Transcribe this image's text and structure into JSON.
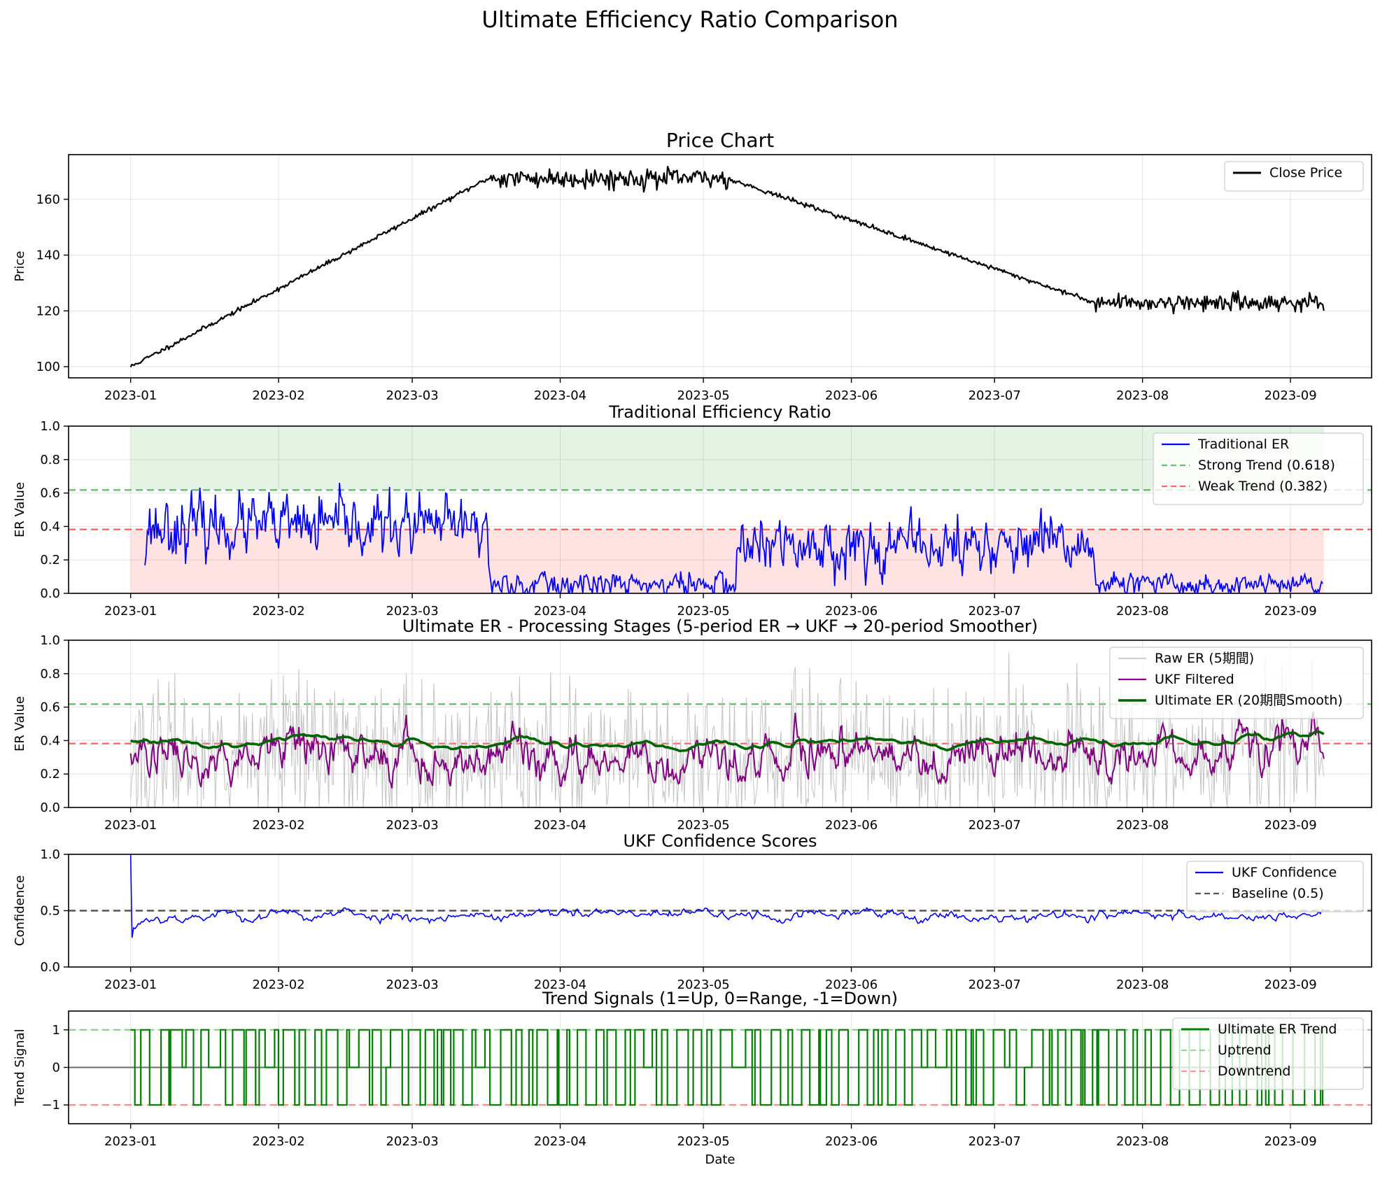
{
  "figure": {
    "suptitle": "Ultimate Efficiency Ratio Comparison"
  },
  "colors": {
    "price": "#000000",
    "traditional": "#0000ff",
    "strong": "#2ca02c",
    "weak": "#ff0000",
    "raw": "#bdbdbd",
    "ukf": "#800080",
    "ultimate": "#006400",
    "confidence": "#0000ff",
    "baseline": "#555555",
    "trend": "#008000"
  },
  "x_ticks": [
    "2023-01",
    "2023-02",
    "2023-03",
    "2023-04",
    "2023-05",
    "2023-06",
    "2023-07",
    "2023-08",
    "2023-09"
  ],
  "chart_data": [
    {
      "id": "price",
      "type": "line",
      "title": "Price Chart",
      "xlabel": "",
      "ylabel": "Price",
      "x_range": [
        "2022-12-19",
        "2023-09-18"
      ],
      "ylim": [
        96,
        176
      ],
      "y_ticks": [
        100,
        120,
        140,
        160
      ],
      "grid": true,
      "legend_position": "top-right",
      "legend": [
        "Close Price"
      ],
      "series": [
        {
          "name": "Close Price",
          "x": [
            "2023-01-01",
            "2023-03-17",
            "2023-05-06",
            "2023-07-22",
            "2023-09-08"
          ],
          "y": [
            100,
            167.5,
            167.5,
            123,
            123
          ],
          "noise": [
            0.4,
            1.8,
            0.4,
            1.5
          ]
        }
      ]
    },
    {
      "id": "traditional",
      "type": "line",
      "title": "Traditional Efficiency Ratio",
      "xlabel": "",
      "ylabel": "ER Value",
      "x_range": [
        "2022-12-19",
        "2023-09-18"
      ],
      "ylim": [
        0,
        1
      ],
      "y_ticks": [
        0.0,
        0.2,
        0.4,
        0.6,
        0.8,
        1.0
      ],
      "grid": true,
      "legend_position": "top-right",
      "legend": [
        "Traditional ER",
        "Strong Trend (0.618)",
        "Weak Trend (0.382)"
      ],
      "hlines": [
        0.618,
        0.382
      ],
      "bands": [
        {
          "from": 0.618,
          "to": 1.0,
          "color": "#2ca02c"
        },
        {
          "from": 0.0,
          "to": 0.382,
          "color": "#ff0000"
        }
      ],
      "series": [
        {
          "name": "Traditional ER",
          "regimes": [
            {
              "from": "2023-01-04",
              "to": "2023-03-17",
              "mean": 0.4,
              "spread": 0.12
            },
            {
              "from": "2023-03-17",
              "to": "2023-05-08",
              "mean": 0.05,
              "spread": 0.06
            },
            {
              "from": "2023-05-08",
              "to": "2023-07-22",
              "mean": 0.28,
              "spread": 0.11
            },
            {
              "from": "2023-07-22",
              "to": "2023-09-08",
              "mean": 0.05,
              "spread": 0.05
            }
          ]
        }
      ]
    },
    {
      "id": "stages",
      "type": "line",
      "title": "Ultimate ER - Processing Stages (5-period ER → UKF → 20-period Smoother)",
      "xlabel": "",
      "ylabel": "ER Value",
      "x_range": [
        "2022-12-19",
        "2023-09-18"
      ],
      "ylim": [
        0,
        1
      ],
      "y_ticks": [
        0.0,
        0.2,
        0.4,
        0.6,
        0.8,
        1.0
      ],
      "grid": true,
      "legend_position": "top-right",
      "legend": [
        "Raw ER (5期間)",
        "UKF Filtered",
        "Ultimate ER (20期間Smooth)"
      ],
      "hlines": [
        0.618,
        0.382
      ],
      "series": [
        {
          "name": "Raw ER (5期間)",
          "mean": 0.3,
          "spread": 0.3
        },
        {
          "name": "UKF Filtered",
          "mean": 0.28,
          "spread": 0.18
        },
        {
          "name": "Ultimate ER (20期間Smooth)",
          "mean": 0.4,
          "spread": 0.09
        }
      ]
    },
    {
      "id": "confidence",
      "type": "line",
      "title": "UKF Confidence Scores",
      "xlabel": "",
      "ylabel": "Confidence",
      "x_range": [
        "2022-12-19",
        "2023-09-18"
      ],
      "ylim": [
        0,
        1
      ],
      "y_ticks": [
        0.0,
        0.5,
        1.0
      ],
      "grid": true,
      "legend_position": "top-right",
      "legend": [
        "UKF Confidence",
        "Baseline (0.5)"
      ],
      "hlines": [
        0.5
      ],
      "series": [
        {
          "name": "UKF Confidence",
          "start": 1.0,
          "dip": 0.26,
          "mean": 0.46,
          "spread": 0.05
        }
      ]
    },
    {
      "id": "trend",
      "type": "line",
      "title": "Trend Signals (1=Up, 0=Range, -1=Down)",
      "xlabel": "Date",
      "ylabel": "Trend Signal",
      "x_range": [
        "2022-12-19",
        "2023-09-18"
      ],
      "ylim": [
        -1.5,
        1.5
      ],
      "y_ticks": [
        -1,
        0,
        1
      ],
      "grid": true,
      "legend_position": "top-right",
      "legend": [
        "Ultimate ER Trend",
        "Uptrend",
        "Downtrend"
      ],
      "hlines": [
        1,
        0,
        -1
      ],
      "series": [
        {
          "name": "Ultimate ER Trend",
          "levels": [
            1,
            0,
            -1
          ]
        }
      ]
    }
  ]
}
